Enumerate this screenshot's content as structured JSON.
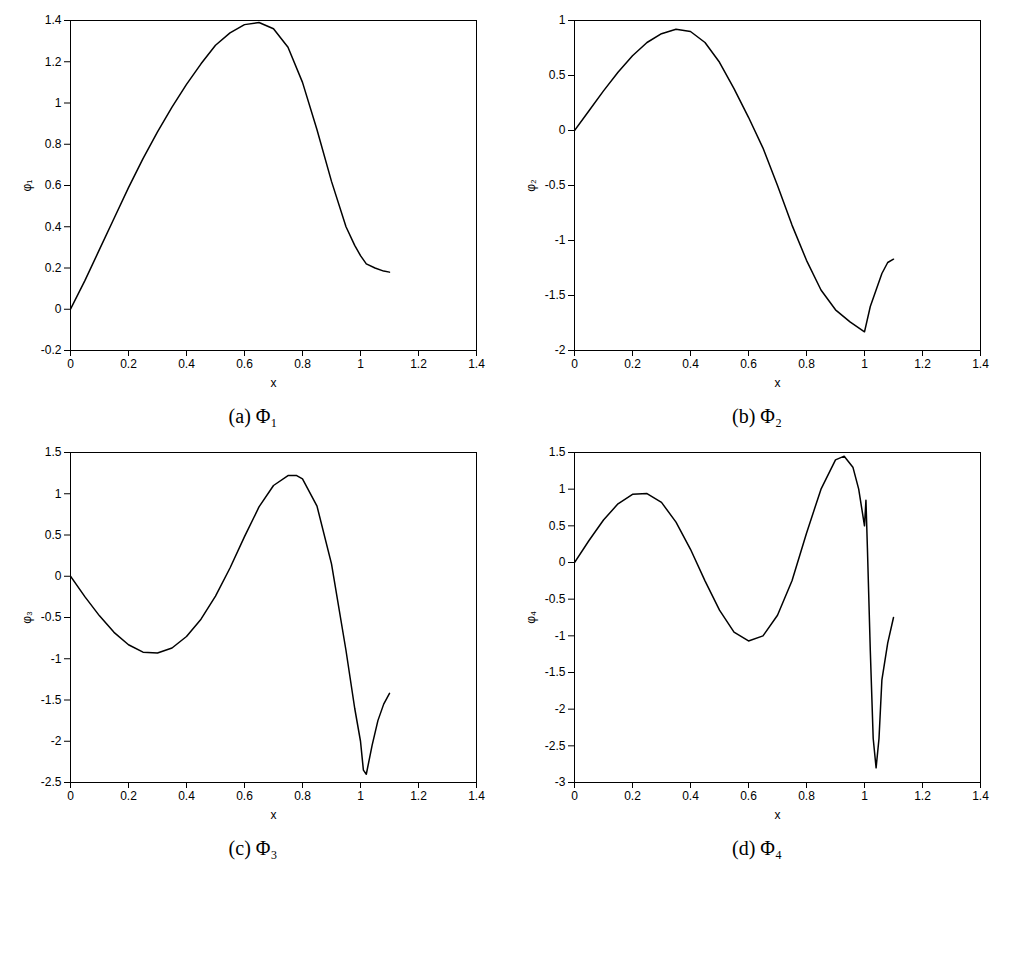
{
  "chart_data": [
    {
      "type": "line",
      "title": "(a) Φ₁",
      "x_label": "x",
      "y_label": "φ₁",
      "color": "#000000",
      "x": [
        0,
        0.05,
        0.1,
        0.15,
        0.2,
        0.25,
        0.3,
        0.35,
        0.4,
        0.45,
        0.5,
        0.55,
        0.6,
        0.65,
        0.7,
        0.75,
        0.8,
        0.85,
        0.9,
        0.95,
        0.98,
        1.0,
        1.02,
        1.05,
        1.08,
        1.1
      ],
      "values": [
        0,
        0.14,
        0.29,
        0.44,
        0.59,
        0.73,
        0.86,
        0.98,
        1.09,
        1.19,
        1.28,
        1.34,
        1.38,
        1.39,
        1.36,
        1.27,
        1.1,
        0.87,
        0.62,
        0.4,
        0.31,
        0.26,
        0.22,
        0.2,
        0.185,
        0.18
      ],
      "xlim": [
        0,
        1.4
      ],
      "xticks": [
        0,
        0.2,
        0.4,
        0.6,
        0.8,
        1,
        1.2,
        1.4
      ],
      "ylim": [
        -0.2,
        1.4
      ],
      "yticks": [
        -0.2,
        0,
        0.2,
        0.4,
        0.6,
        0.8,
        1,
        1.2,
        1.4
      ]
    },
    {
      "type": "line",
      "title": "(b) Φ₂",
      "x_label": "x",
      "y_label": "φ₂",
      "color": "#000000",
      "x": [
        0,
        0.05,
        0.1,
        0.15,
        0.2,
        0.25,
        0.3,
        0.35,
        0.4,
        0.45,
        0.5,
        0.55,
        0.6,
        0.65,
        0.7,
        0.75,
        0.8,
        0.85,
        0.9,
        0.95,
        1.0,
        1.02,
        1.04,
        1.06,
        1.08,
        1.1
      ],
      "values": [
        0,
        0.18,
        0.36,
        0.53,
        0.68,
        0.8,
        0.88,
        0.92,
        0.9,
        0.8,
        0.62,
        0.38,
        0.12,
        -0.16,
        -0.5,
        -0.86,
        -1.18,
        -1.45,
        -1.63,
        -1.74,
        -1.83,
        -1.6,
        -1.45,
        -1.3,
        -1.2,
        -1.17
      ],
      "xlim": [
        0,
        1.4
      ],
      "xticks": [
        0,
        0.2,
        0.4,
        0.6,
        0.8,
        1,
        1.2,
        1.4
      ],
      "ylim": [
        -2,
        1
      ],
      "yticks": [
        -2,
        -1.5,
        -1,
        -0.5,
        0,
        0.5,
        1
      ]
    },
    {
      "type": "line",
      "title": "(c) Φ₃",
      "x_label": "x",
      "y_label": "φ₃",
      "color": "#000000",
      "x": [
        0,
        0.05,
        0.1,
        0.15,
        0.2,
        0.25,
        0.3,
        0.35,
        0.4,
        0.45,
        0.5,
        0.55,
        0.6,
        0.65,
        0.7,
        0.75,
        0.78,
        0.8,
        0.85,
        0.9,
        0.95,
        0.98,
        1.0,
        1.01,
        1.02,
        1.04,
        1.06,
        1.08,
        1.1
      ],
      "values": [
        0,
        -0.25,
        -0.48,
        -0.68,
        -0.83,
        -0.92,
        -0.93,
        -0.87,
        -0.73,
        -0.52,
        -0.24,
        0.1,
        0.48,
        0.84,
        1.1,
        1.22,
        1.22,
        1.18,
        0.85,
        0.15,
        -0.9,
        -1.6,
        -2.0,
        -2.35,
        -2.4,
        -2.05,
        -1.75,
        -1.55,
        -1.42
      ],
      "xlim": [
        0,
        1.4
      ],
      "xticks": [
        0,
        0.2,
        0.4,
        0.6,
        0.8,
        1,
        1.2,
        1.4
      ],
      "ylim": [
        -2.5,
        1.5
      ],
      "yticks": [
        -2.5,
        -2,
        -1.5,
        -1,
        -0.5,
        0,
        0.5,
        1,
        1.5
      ]
    },
    {
      "type": "line",
      "title": "(d) Φ₄",
      "x_label": "x",
      "y_label": "φ₄",
      "color": "#000000",
      "x": [
        0,
        0.05,
        0.1,
        0.15,
        0.2,
        0.25,
        0.3,
        0.35,
        0.4,
        0.45,
        0.5,
        0.55,
        0.6,
        0.65,
        0.7,
        0.75,
        0.8,
        0.85,
        0.9,
        0.93,
        0.96,
        0.98,
        1.0,
        1.005,
        1.01,
        1.02,
        1.03,
        1.04,
        1.05,
        1.06,
        1.08,
        1.1
      ],
      "values": [
        0,
        0.3,
        0.58,
        0.8,
        0.93,
        0.94,
        0.82,
        0.55,
        0.18,
        -0.25,
        -0.65,
        -0.95,
        -1.07,
        -1.0,
        -0.72,
        -0.25,
        0.4,
        1.0,
        1.4,
        1.45,
        1.3,
        1.0,
        0.5,
        0.85,
        0.2,
        -1.2,
        -2.4,
        -2.8,
        -2.4,
        -1.6,
        -1.1,
        -0.75
      ],
      "xlim": [
        0,
        1.4
      ],
      "xticks": [
        0,
        0.2,
        0.4,
        0.6,
        0.8,
        1,
        1.2,
        1.4
      ],
      "ylim": [
        -3,
        1.5
      ],
      "yticks": [
        -3,
        -2.5,
        -2,
        -1.5,
        -1,
        -0.5,
        0,
        0.5,
        1,
        1.5
      ]
    }
  ]
}
